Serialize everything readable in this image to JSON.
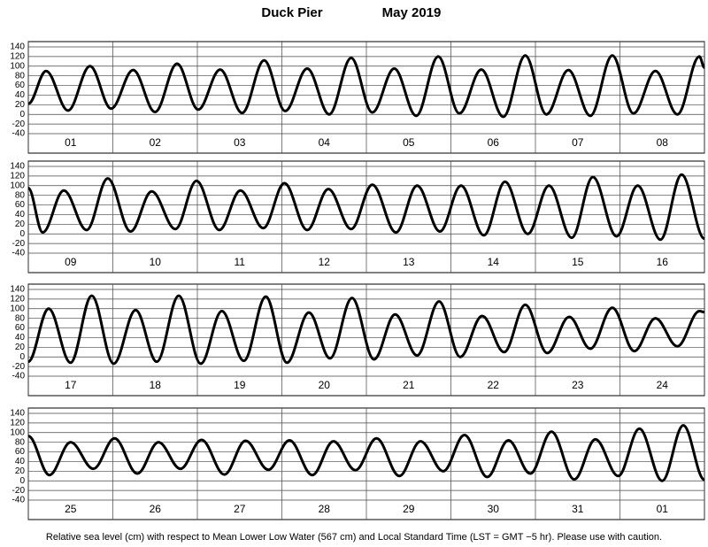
{
  "title": "Duck Pier",
  "date": "May   2019",
  "note": "Relative sea level (cm) with respect to Mean Lower Low Water (567 cm) and Local Standard Time (LST = GMT −5 hr). Please use with caution.",
  "chart_data": [
    {
      "type": "line",
      "categories": [
        "01",
        "02",
        "03",
        "04",
        "05",
        "06",
        "07",
        "08"
      ],
      "xlim": [
        0,
        8
      ],
      "xticks": [
        0,
        1,
        2,
        3,
        4,
        5,
        6,
        7,
        8
      ],
      "ylim": [
        -40,
        140
      ],
      "yticks": [
        -40,
        -20,
        0,
        20,
        40,
        60,
        80,
        100,
        120,
        140
      ],
      "grid": true,
      "x": [
        0,
        0.21,
        0.47,
        0.73,
        0.98,
        1.24,
        1.5,
        1.76,
        2.01,
        2.27,
        2.53,
        2.79,
        3.04,
        3.3,
        3.56,
        3.82,
        4.07,
        4.33,
        4.59,
        4.85,
        5.1,
        5.36,
        5.62,
        5.88,
        6.13,
        6.39,
        6.65,
        6.91,
        7.16,
        7.42,
        7.68,
        7.94,
        8
      ],
      "series": [
        {
          "color": "#000000",
          "values": [
            22,
            90,
            8,
            100,
            12,
            92,
            5,
            105,
            10,
            93,
            3,
            112,
            7,
            95,
            0,
            117,
            4,
            95,
            -3,
            120,
            2,
            93,
            -5,
            122,
            0,
            92,
            -3,
            122,
            2,
            90,
            0,
            120,
            97
          ]
        }
      ]
    },
    {
      "type": "line",
      "categories": [
        "09",
        "10",
        "11",
        "12",
        "13",
        "14",
        "15",
        "16"
      ],
      "xlim": [
        0,
        8
      ],
      "xticks": [
        0,
        1,
        2,
        3,
        4,
        5,
        6,
        7,
        8
      ],
      "ylim": [
        -40,
        140
      ],
      "yticks": [
        -40,
        -20,
        0,
        20,
        40,
        60,
        80,
        100,
        120,
        140
      ],
      "grid": true,
      "x": [
        0,
        0.17,
        0.42,
        0.69,
        0.94,
        1.21,
        1.46,
        1.74,
        1.99,
        2.26,
        2.51,
        2.78,
        3.03,
        3.3,
        3.55,
        3.82,
        4.07,
        4.35,
        4.6,
        4.87,
        5.12,
        5.39,
        5.64,
        5.91,
        6.16,
        6.43,
        6.68,
        6.96,
        7.21,
        7.48,
        7.73,
        8
      ],
      "series": [
        {
          "color": "#000000",
          "values": [
            95,
            3,
            90,
            8,
            115,
            5,
            88,
            10,
            110,
            8,
            90,
            12,
            105,
            8,
            93,
            10,
            102,
            3,
            100,
            5,
            100,
            -3,
            108,
            0,
            100,
            -8,
            118,
            -5,
            100,
            -12,
            123,
            -10
          ]
        }
      ]
    },
    {
      "type": "line",
      "categories": [
        "17",
        "18",
        "19",
        "20",
        "21",
        "22",
        "23",
        "24"
      ],
      "xlim": [
        0,
        8
      ],
      "xticks": [
        0,
        1,
        2,
        3,
        4,
        5,
        6,
        7,
        8
      ],
      "ylim": [
        -40,
        140
      ],
      "yticks": [
        -40,
        -20,
        0,
        20,
        40,
        60,
        80,
        100,
        120,
        140
      ],
      "grid": true,
      "x": [
        0,
        0.24,
        0.5,
        0.75,
        1.01,
        1.27,
        1.52,
        1.78,
        2.04,
        2.29,
        2.55,
        2.81,
        3.06,
        3.32,
        3.57,
        3.83,
        4.09,
        4.34,
        4.6,
        4.86,
        5.11,
        5.37,
        5.63,
        5.88,
        6.14,
        6.4,
        6.65,
        6.91,
        7.17,
        7.42,
        7.68,
        7.94,
        8
      ],
      "series": [
        {
          "color": "#000000",
          "values": [
            -10,
            100,
            -12,
            127,
            -14,
            97,
            -10,
            127,
            -14,
            95,
            -8,
            125,
            -12,
            92,
            -3,
            122,
            -5,
            88,
            3,
            115,
            0,
            85,
            10,
            108,
            8,
            83,
            17,
            102,
            12,
            80,
            22,
            95,
            93
          ]
        }
      ]
    },
    {
      "type": "line",
      "categories": [
        "25",
        "26",
        "27",
        "28",
        "29",
        "30",
        "31",
        "01"
      ],
      "xlim": [
        0,
        8
      ],
      "xticks": [
        0,
        1,
        2,
        3,
        4,
        5,
        6,
        7,
        8
      ],
      "ylim": [
        -40,
        140
      ],
      "yticks": [
        -40,
        -20,
        0,
        20,
        40,
        60,
        80,
        100,
        120,
        140
      ],
      "grid": true,
      "x": [
        0,
        0.25,
        0.5,
        0.77,
        1.02,
        1.29,
        1.54,
        1.8,
        2.05,
        2.32,
        2.57,
        2.84,
        3.09,
        3.36,
        3.61,
        3.87,
        4.12,
        4.39,
        4.64,
        4.91,
        5.16,
        5.43,
        5.68,
        5.94,
        6.19,
        6.46,
        6.71,
        6.98,
        7.23,
        7.5,
        7.75,
        8
      ],
      "series": [
        {
          "color": "#000000",
          "values": [
            93,
            12,
            80,
            25,
            88,
            15,
            80,
            25,
            85,
            13,
            83,
            23,
            84,
            12,
            82,
            22,
            88,
            10,
            82,
            20,
            95,
            8,
            84,
            15,
            102,
            3,
            86,
            10,
            108,
            0,
            115,
            2
          ]
        }
      ]
    }
  ]
}
